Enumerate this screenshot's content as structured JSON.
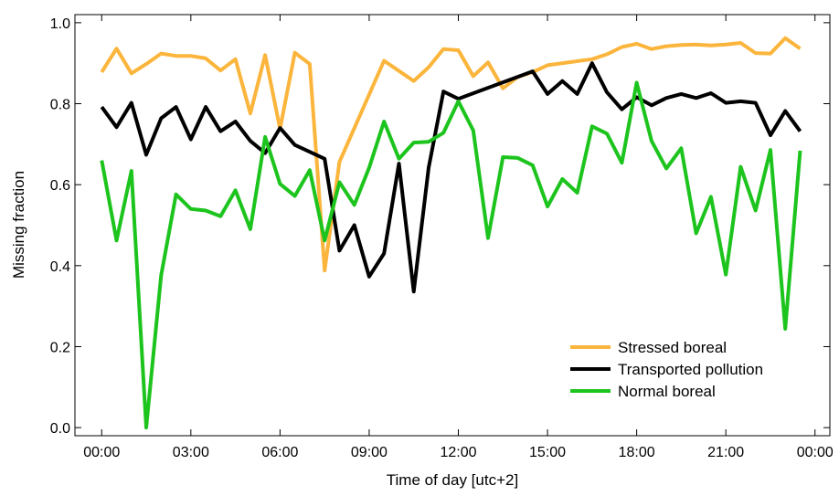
{
  "chart_data": {
    "type": "line",
    "title": "",
    "xlabel": "Time of day [utc+2]",
    "ylabel": "Missing fraction",
    "x_unit": "hours",
    "xlim": [
      -0.9,
      24.5
    ],
    "ylim": [
      -0.02,
      1.02
    ],
    "xticks": [
      0,
      3,
      6,
      9,
      12,
      15,
      18,
      21,
      24
    ],
    "xtick_labels": [
      "00:00",
      "03:00",
      "06:00",
      "09:00",
      "12:00",
      "15:00",
      "18:00",
      "21:00",
      "00:00"
    ],
    "yticks": [
      0.0,
      0.2,
      0.4,
      0.6,
      0.8,
      1.0
    ],
    "ytick_labels": [
      "0.0",
      "0.2",
      "0.4",
      "0.6",
      "0.8",
      "1.0"
    ],
    "grid": false,
    "legend_position": "bottom-right",
    "x": [
      0,
      0.5,
      1,
      1.5,
      2,
      2.5,
      3,
      3.5,
      4,
      4.5,
      5,
      5.5,
      6,
      6.5,
      7,
      7.5,
      8,
      8.5,
      9,
      9.5,
      10,
      10.5,
      11,
      11.5,
      12,
      12.5,
      13,
      13.5,
      14,
      14.5,
      15,
      15.5,
      16,
      16.5,
      17,
      17.5,
      18,
      18.5,
      19,
      19.5,
      20,
      20.5,
      21,
      21.5,
      22,
      22.5,
      23,
      23.5
    ],
    "series": [
      {
        "name": "Stressed boreal",
        "color": "#fbb53c",
        "x": [
          0,
          0.5,
          1,
          1.5,
          2,
          2.5,
          3,
          3.5,
          4,
          4.5,
          5,
          5.5,
          6,
          6.5,
          7,
          7.5,
          8,
          9.5,
          10.5,
          11,
          11.5,
          12,
          12.5,
          13,
          13.5,
          14,
          14.5,
          15,
          16.5,
          17,
          17.5,
          18,
          18.5,
          19,
          19.5,
          20,
          20.5,
          21,
          21.5,
          22,
          22.5,
          23,
          23.5
        ],
        "values": [
          0.878,
          0.936,
          0.875,
          0.898,
          0.924,
          0.918,
          0.918,
          0.912,
          0.882,
          0.91,
          0.776,
          0.92,
          0.738,
          0.926,
          0.898,
          0.388,
          0.656,
          0.906,
          0.856,
          0.89,
          0.935,
          0.932,
          0.868,
          0.902,
          0.838,
          0.866,
          0.878,
          0.895,
          0.91,
          0.922,
          0.94,
          0.948,
          0.935,
          0.942,
          0.945,
          0.946,
          0.944,
          0.946,
          0.95,
          0.925,
          0.924,
          0.962,
          0.936
        ]
      },
      {
        "name": "Transported pollution",
        "color": "#000000",
        "x": [
          0,
          0.5,
          1,
          1.5,
          2,
          2.5,
          3,
          3.5,
          4,
          4.5,
          5,
          5.5,
          6,
          6.5,
          7.5,
          8,
          8.5,
          9,
          9.5,
          10,
          10.5,
          11,
          11.5,
          12,
          14.5,
          15,
          15.5,
          16,
          16.5,
          17,
          17.5,
          18,
          18.5,
          19,
          19.5,
          20,
          20.5,
          21,
          21.5,
          22,
          22.5,
          23,
          23.5
        ],
        "values": [
          0.792,
          0.742,
          0.802,
          0.674,
          0.764,
          0.792,
          0.712,
          0.792,
          0.732,
          0.756,
          0.708,
          0.678,
          0.74,
          0.698,
          0.664,
          0.437,
          0.5,
          0.373,
          0.43,
          0.652,
          0.336,
          0.642,
          0.83,
          0.812,
          0.88,
          0.824,
          0.856,
          0.824,
          0.9,
          0.828,
          0.786,
          0.816,
          0.796,
          0.814,
          0.824,
          0.814,
          0.826,
          0.802,
          0.806,
          0.802,
          0.722,
          0.782,
          0.732
        ]
      },
      {
        "name": "Normal boreal",
        "color": "#1dc41d",
        "x": [
          0,
          0.5,
          1,
          1.5,
          2,
          2.5,
          3,
          3.5,
          4,
          4.5,
          5,
          5.5,
          6,
          6.5,
          7,
          7.5,
          8,
          8.5,
          9,
          9.5,
          10,
          10.5,
          11,
          11.5,
          12,
          12.5,
          13,
          13.5,
          14,
          14.5,
          15,
          15.5,
          16,
          16.5,
          17,
          17.5,
          18,
          18.5,
          19,
          19.5,
          20,
          20.5,
          21,
          21.5,
          22,
          22.5,
          23,
          23.5
        ],
        "values": [
          0.66,
          0.462,
          0.634,
          0.0,
          0.376,
          0.576,
          0.54,
          0.536,
          0.522,
          0.586,
          0.49,
          0.718,
          0.602,
          0.572,
          0.636,
          0.462,
          0.606,
          0.55,
          0.642,
          0.756,
          0.664,
          0.704,
          0.706,
          0.728,
          0.806,
          0.734,
          0.468,
          0.668,
          0.666,
          0.648,
          0.546,
          0.614,
          0.58,
          0.744,
          0.726,
          0.654,
          0.852,
          0.708,
          0.64,
          0.69,
          0.48,
          0.57,
          0.378,
          0.644,
          0.536,
          0.686,
          0.244,
          0.684
        ]
      }
    ]
  }
}
